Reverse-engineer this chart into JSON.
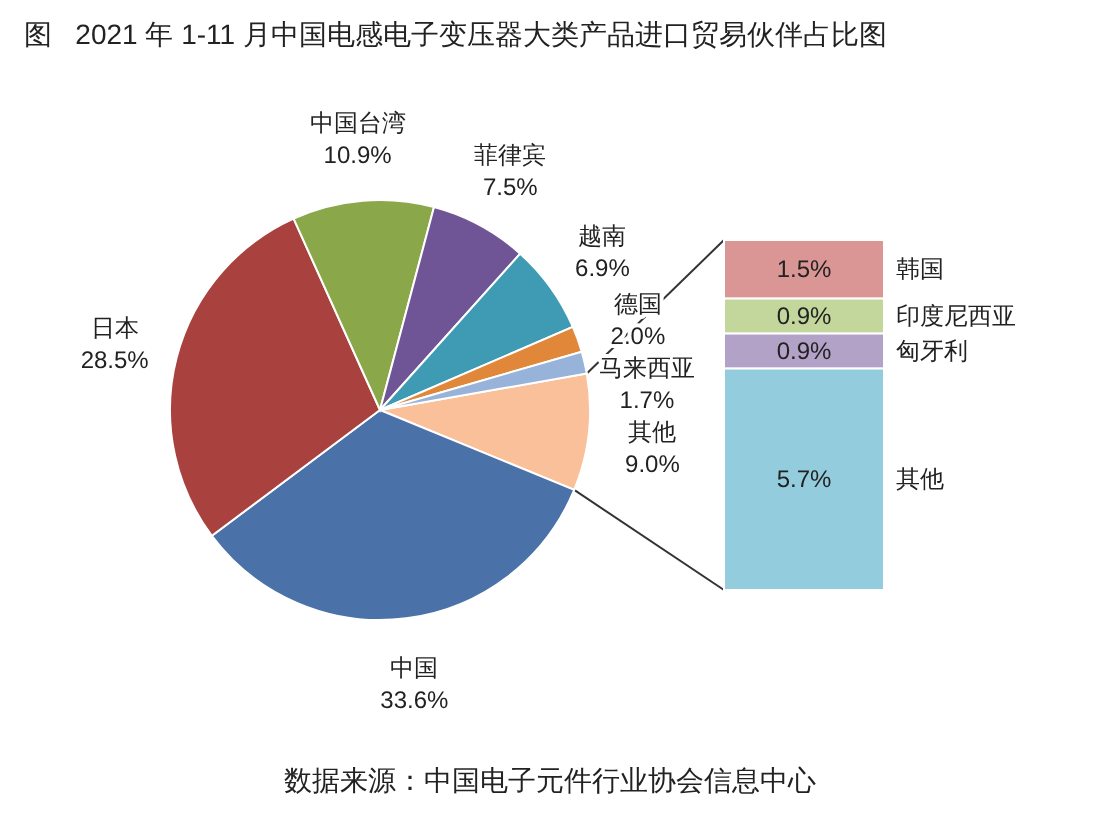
{
  "chart_data": [
    {
      "type": "pie",
      "title": "图   2021 年 1-11 月中国电感电子变压器大类产品进口贸易伙伴占比图",
      "categories": [
        "其他",
        "中国",
        "日本",
        "中国台湾",
        "菲律宾",
        "越南",
        "德国",
        "马来西亚"
      ],
      "values": [
        9.0,
        33.6,
        28.5,
        10.9,
        7.5,
        6.9,
        2.0,
        1.7
      ],
      "value_labels": [
        "9.0%",
        "33.6%",
        "28.5%",
        "10.9%",
        "7.5%",
        "6.9%",
        "2.0%",
        "1.7%"
      ],
      "colors": [
        "#f9c09a",
        "#4a72a8",
        "#a9413f",
        "#8aa84a",
        "#6f5596",
        "#3f9bb3",
        "#e0873a",
        "#98b3d9"
      ],
      "annotations": [
        "数据来源：中国电子元件行业协会信息中心"
      ]
    },
    {
      "type": "bar",
      "stacked": true,
      "categories": [
        null
      ],
      "series": [
        {
          "name": "其他",
          "color": "#93cddd",
          "values": [
            5.7
          ],
          "value_labels": [
            "5.7%"
          ]
        },
        {
          "name": "匈牙利",
          "color": "#b3a2c7",
          "values": [
            0.9
          ],
          "value_labels": [
            "0.9%"
          ]
        },
        {
          "name": "印度尼西亚",
          "color": "#c3d69b",
          "values": [
            0.9
          ],
          "value_labels": [
            "0.9%"
          ]
        },
        {
          "name": "韩国",
          "color": "#d99694",
          "values": [
            1.5
          ],
          "value_labels": [
            "1.5%"
          ]
        }
      ]
    }
  ]
}
